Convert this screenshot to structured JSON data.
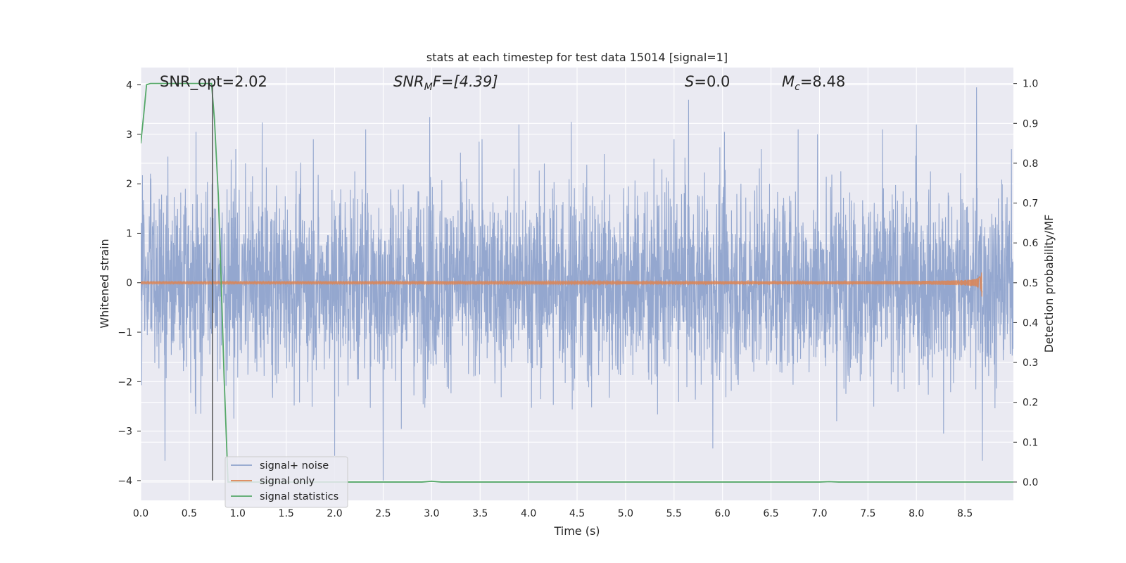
{
  "chart_data": {
    "type": "line",
    "title": "stats at each timestep for test data 15014 [signal=1]",
    "xlabel": "Time (s)",
    "ylabel": "Whitened strain",
    "y2label": "Detection probability/MF",
    "xlim": [
      0.0,
      9.0
    ],
    "ylim": [
      -4.4,
      4.35
    ],
    "y2lim": [
      -0.046,
      1.04
    ],
    "x_ticks": [
      "0.0",
      "0.5",
      "1.0",
      "1.5",
      "2.0",
      "2.5",
      "3.0",
      "3.5",
      "4.0",
      "4.5",
      "5.0",
      "5.5",
      "6.0",
      "6.5",
      "7.0",
      "7.5",
      "8.0",
      "8.5"
    ],
    "y_ticks": [
      "−4",
      "−3",
      "−2",
      "−1",
      "0",
      "1",
      "2",
      "3",
      "4"
    ],
    "y2_ticks": [
      "0.0",
      "0.1",
      "0.2",
      "0.3",
      "0.4",
      "0.5",
      "0.6",
      "0.7",
      "0.8",
      "0.9",
      "1.0"
    ],
    "grid": true,
    "legend_position": "lower-left",
    "annotations": {
      "snr_opt": "SNR_opt=2.02",
      "snr_mf_var": "SNR",
      "snr_mf_sub": "M",
      "snr_mf_rest": "F=[4.39]",
      "s_var": "S",
      "s_rest": "=0.0",
      "mc_var": "M",
      "mc_sub": "c",
      "mc_rest": "=8.48"
    },
    "series": [
      {
        "name": "signal+ noise",
        "color": "#8fa3cc",
        "noise_std": 0.95,
        "peak_spikes": [
          [
            0.25,
            -3.6
          ],
          [
            0.28,
            2.55
          ],
          [
            0.57,
            3.05
          ],
          [
            0.98,
            2.7
          ],
          [
            1.78,
            2.9
          ],
          [
            2.0,
            -3.5
          ],
          [
            2.32,
            3.1
          ],
          [
            2.5,
            -4.0
          ],
          [
            2.58,
            1.8
          ],
          [
            2.98,
            3.35
          ],
          [
            3.52,
            2.9
          ],
          [
            3.9,
            3.2
          ],
          [
            4.44,
            3.25
          ],
          [
            4.78,
            2.6
          ],
          [
            5.5,
            2.9
          ],
          [
            5.65,
            3.7
          ],
          [
            5.9,
            -3.35
          ],
          [
            6.02,
            3.05
          ],
          [
            6.4,
            2.7
          ],
          [
            6.78,
            3.1
          ],
          [
            6.98,
            3.0
          ],
          [
            7.65,
            3.1
          ],
          [
            8.0,
            3.2
          ],
          [
            8.28,
            -3.05
          ],
          [
            8.62,
            3.95
          ],
          [
            8.68,
            -3.6
          ],
          [
            8.98,
            2.7
          ]
        ]
      },
      {
        "name": "signal only",
        "color": "#dd8452",
        "chirp_end": 8.68,
        "envelope_start": 0.02,
        "envelope_end": 0.3
      },
      {
        "name": "signal statistics",
        "color": "#55a868",
        "axis": "right",
        "x": [
          0.0,
          0.03,
          0.06,
          0.1,
          0.73,
          0.76,
          0.8,
          0.83,
          0.86,
          0.9,
          2.9,
          3.0,
          3.1,
          7.0,
          7.1,
          7.2,
          9.0
        ],
        "y": [
          0.85,
          0.92,
          0.997,
          1.0,
          1.0,
          0.91,
          0.72,
          0.5,
          0.26,
          0.0,
          0.0,
          0.002,
          0.0,
          0.0,
          0.001,
          0.0,
          0.0
        ]
      }
    ],
    "vertical_line": {
      "x": 0.74,
      "y_from": -4.0,
      "y_to": 4.0,
      "color": "#555555"
    }
  }
}
